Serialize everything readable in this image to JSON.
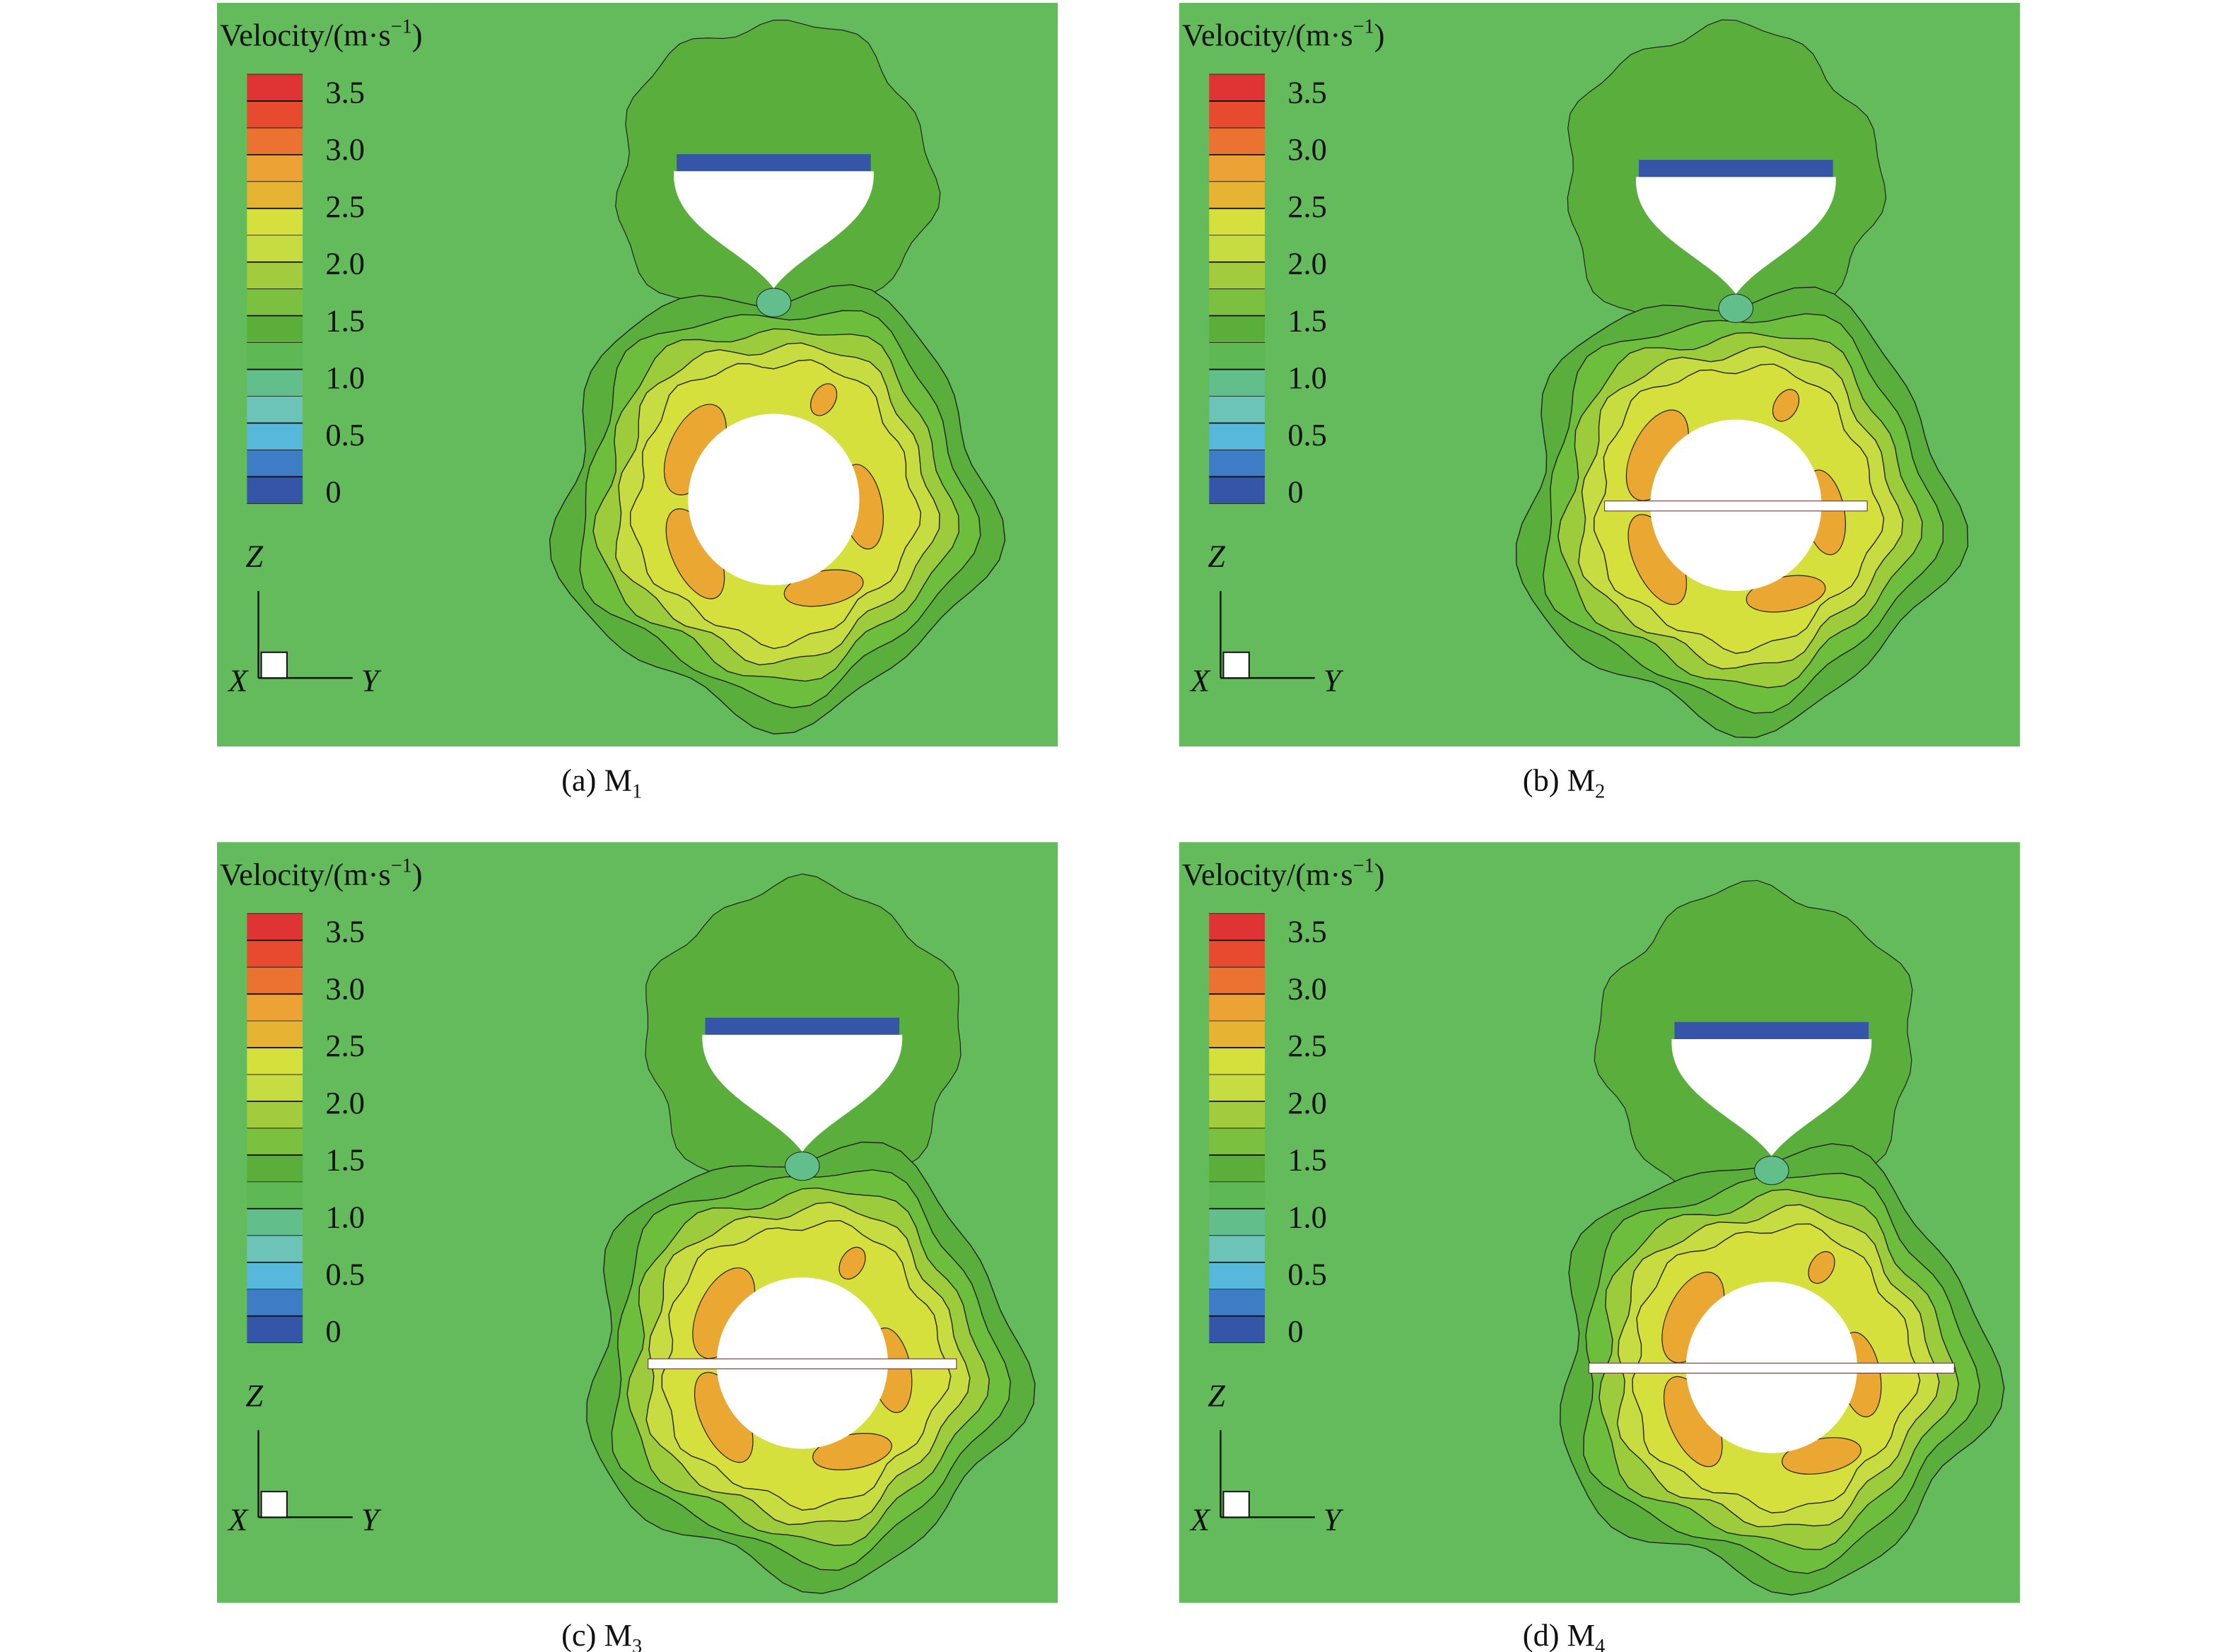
{
  "legend": {
    "title": "Velocity/(m·s",
    "title_superscript": "−1",
    "title_end": ")",
    "labels": [
      "3.5",
      "3.0",
      "2.5",
      "2.0",
      "1.5",
      "1.0",
      "0.5",
      "0"
    ]
  },
  "axes": {
    "z": "Z",
    "x": "X",
    "y": "Y"
  },
  "panels": [
    {
      "caption": "(a) M",
      "caption_subscript": "1"
    },
    {
      "caption": "(b) M",
      "caption_subscript": "2"
    },
    {
      "caption": "(c) M",
      "caption_subscript": "3"
    },
    {
      "caption": "(d) M",
      "caption_subscript": "4"
    }
  ]
}
